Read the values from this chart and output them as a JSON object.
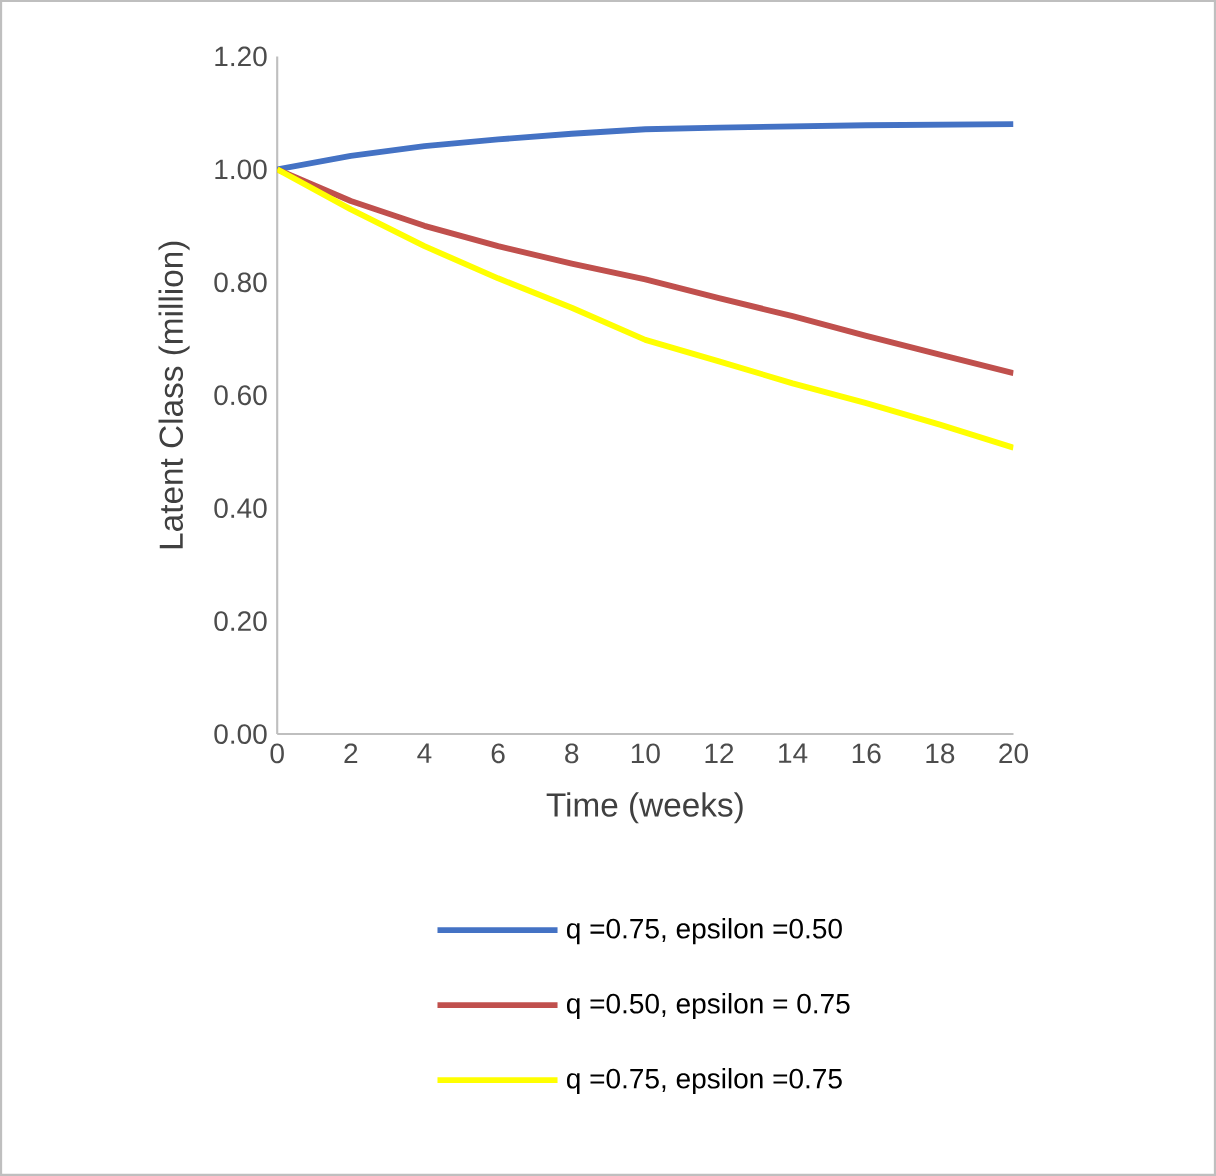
{
  "chart_data": {
    "type": "line",
    "xlabel": "Time (weeks)",
    "ylabel": "Latent Class (million)",
    "x": [
      0,
      2,
      4,
      6,
      8,
      10,
      12,
      14,
      16,
      18,
      20
    ],
    "xlim": [
      0,
      20
    ],
    "xticks": [
      0,
      2,
      4,
      6,
      8,
      10,
      12,
      14,
      16,
      18,
      20
    ],
    "ylim": [
      0,
      1.2
    ],
    "yticks": [
      {
        "value": 0,
        "label": "0.00"
      },
      {
        "value": 0.2,
        "label": "0.20"
      },
      {
        "value": 0.4,
        "label": "0.40"
      },
      {
        "value": 0.6,
        "label": "0.60"
      },
      {
        "value": 0.8,
        "label": "0.80"
      },
      {
        "value": 1.0,
        "label": "1.00"
      },
      {
        "value": 1.2,
        "label": "1.20"
      }
    ],
    "legend": "bottom",
    "marker": "none",
    "line_style": "solid",
    "series": [
      {
        "name": "q =0.75, epsilon =0.50",
        "color": "#4472c4",
        "values": [
          1.0,
          1.024,
          1.041,
          1.053,
          1.063,
          1.071,
          1.074,
          1.076,
          1.078,
          1.079,
          1.08
        ]
      },
      {
        "name": "q =0.50, epsilon = 0.75",
        "color": "#c0504d",
        "values": [
          1.0,
          0.944,
          0.9,
          0.864,
          0.833,
          0.805,
          0.772,
          0.74,
          0.705,
          0.672,
          0.639
        ]
      },
      {
        "name": "q =0.75, epsilon =0.75",
        "color": "#ffff00",
        "values": [
          1.0,
          0.929,
          0.864,
          0.807,
          0.755,
          0.698,
          0.66,
          0.621,
          0.586,
          0.548,
          0.507
        ]
      }
    ]
  }
}
